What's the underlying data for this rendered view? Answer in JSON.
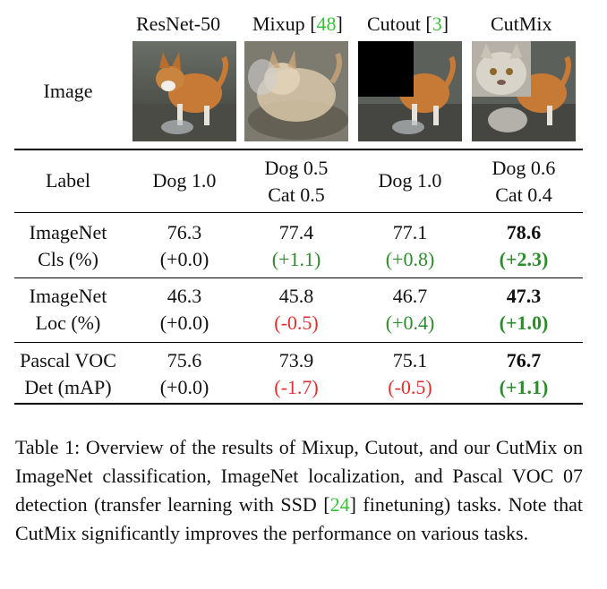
{
  "header": {
    "col1": "ResNet-50",
    "col2": "Mixup",
    "col2_cite": "48",
    "col3": "Cutout",
    "col3_cite": "3",
    "col4": "CutMix"
  },
  "rows": {
    "image_label": "Image",
    "label_row": {
      "label": "Label",
      "c1": "Dog 1.0",
      "c2_line1": "Dog 0.5",
      "c2_line2": "Cat 0.5",
      "c3": "Dog 1.0",
      "c4_line1": "Dog 0.6",
      "c4_line2": "Cat 0.4"
    },
    "imagenet_cls": {
      "label_line1": "ImageNet",
      "label_line2": "Cls (%)",
      "values": [
        "76.3",
        "77.4",
        "77.1",
        "78.6"
      ],
      "deltas": [
        "(+0.0)",
        "(+1.1)",
        "(+0.8)",
        "(+2.3)"
      ]
    },
    "imagenet_loc": {
      "label_line1": "ImageNet",
      "label_line2": "Loc (%)",
      "values": [
        "46.3",
        "45.8",
        "46.7",
        "47.3"
      ],
      "deltas": [
        "(+0.0)",
        "(-0.5)",
        "(+0.4)",
        "(+1.0)"
      ]
    },
    "pascal_det": {
      "label_line1": "Pascal VOC",
      "label_line2": "Det (mAP)",
      "values": [
        "75.6",
        "73.9",
        "75.1",
        "76.7"
      ],
      "deltas": [
        "(+0.0)",
        "(-1.7)",
        "(-0.5)",
        "(+1.1)"
      ]
    }
  },
  "caption": {
    "part1": "Table 1: Overview of the results of Mixup, Cutout, and our CutMix on ImageNet classification, ImageNet localization, and Pascal VOC 07 detection (transfer learning with SSD [",
    "cite": "24",
    "part2": "] finetuning) tasks. Note that CutMix significantly improves the performance on various tasks."
  },
  "colors": {
    "positive": "#2e8b2e",
    "negative": "#e03030",
    "citation": "#3bbf3b"
  }
}
